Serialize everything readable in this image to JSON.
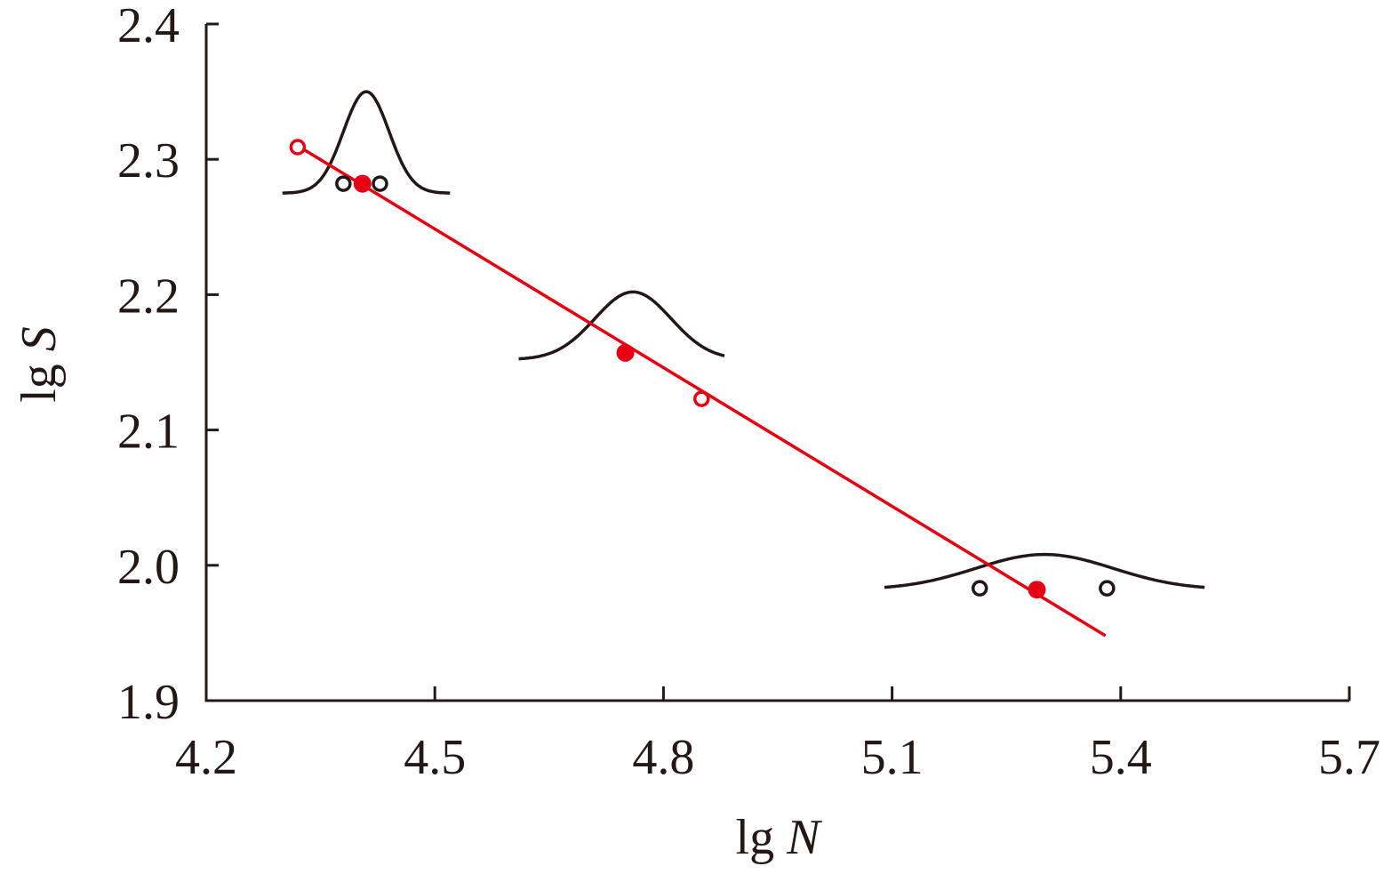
{
  "chart_data": {
    "type": "scatter",
    "title": "",
    "xlabel": {
      "prefix": "lg ",
      "var": "N"
    },
    "ylabel": {
      "prefix": "lg ",
      "var": "S"
    },
    "xlim": [
      4.2,
      5.7
    ],
    "ylim": [
      1.9,
      2.4
    ],
    "x_ticks": [
      "4.2",
      "4.5",
      "4.8",
      "5.1",
      "5.4",
      "5.7"
    ],
    "y_ticks": [
      "1.9",
      "2.0",
      "2.1",
      "2.2",
      "2.3",
      "2.4"
    ],
    "grid": false,
    "colors": {
      "axis": "#231815",
      "fit": "#e60012",
      "curve": "#231815"
    },
    "fit_line": {
      "x": [
        4.32,
        5.38
      ],
      "y": [
        2.31,
        1.948
      ]
    },
    "series": [
      {
        "marker": "filled-circle",
        "color": "#e60012",
        "points": [
          {
            "x": 4.405,
            "y": 2.282
          },
          {
            "x": 4.75,
            "y": 2.157
          },
          {
            "x": 5.29,
            "y": 1.982
          }
        ]
      },
      {
        "marker": "open-circle",
        "color": "#e60012",
        "points": [
          {
            "x": 4.32,
            "y": 2.309
          },
          {
            "x": 4.85,
            "y": 2.123
          }
        ]
      },
      {
        "marker": "open-circle",
        "color": "#231815",
        "points": [
          {
            "x": 4.38,
            "y": 2.282
          },
          {
            "x": 4.428,
            "y": 2.282
          },
          {
            "x": 5.215,
            "y": 1.983
          },
          {
            "x": 5.382,
            "y": 1.983
          }
        ]
      }
    ],
    "distribution_curves": [
      {
        "center_x": 4.41,
        "baseline_y": 2.275,
        "peak_y": 2.35,
        "width_x": 0.03,
        "x_range": [
          4.3,
          4.52
        ]
      },
      {
        "center_x": 4.76,
        "baseline_y": 2.152,
        "peak_y": 2.202,
        "width_x": 0.05,
        "x_range": [
          4.61,
          4.88
        ]
      },
      {
        "center_x": 5.3,
        "baseline_y": 1.982,
        "peak_y": 2.008,
        "width_x": 0.09,
        "x_range": [
          5.09,
          5.51
        ]
      }
    ]
  }
}
